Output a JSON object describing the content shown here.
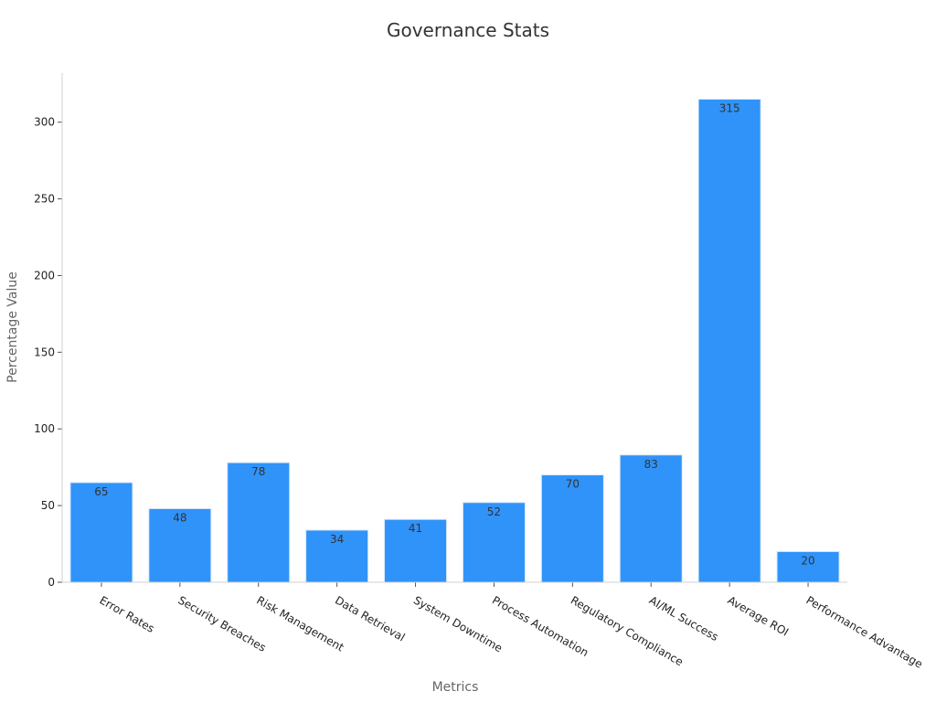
{
  "chart_data": {
    "type": "bar",
    "title": "Governance Stats",
    "xlabel": "Metrics",
    "ylabel": "Percentage Value",
    "categories": [
      "Error Rates",
      "Security Breaches",
      "Risk Management",
      "Data Retrieval",
      "System Downtime",
      "Process Automation",
      "Regulatory Compliance",
      "AI/ML Success",
      "Average ROI",
      "Performance Advantage"
    ],
    "values": [
      65,
      48,
      78,
      34,
      41,
      52,
      70,
      83,
      315,
      20
    ],
    "ylim": [
      0,
      332
    ],
    "yticks": [
      0,
      50,
      100,
      150,
      200,
      250,
      300
    ],
    "grid": false,
    "legend": "none",
    "colors": {
      "bar": "#2f93f9",
      "bar_edge": "#d6e7fb",
      "axis": "#d0d0d0"
    }
  }
}
